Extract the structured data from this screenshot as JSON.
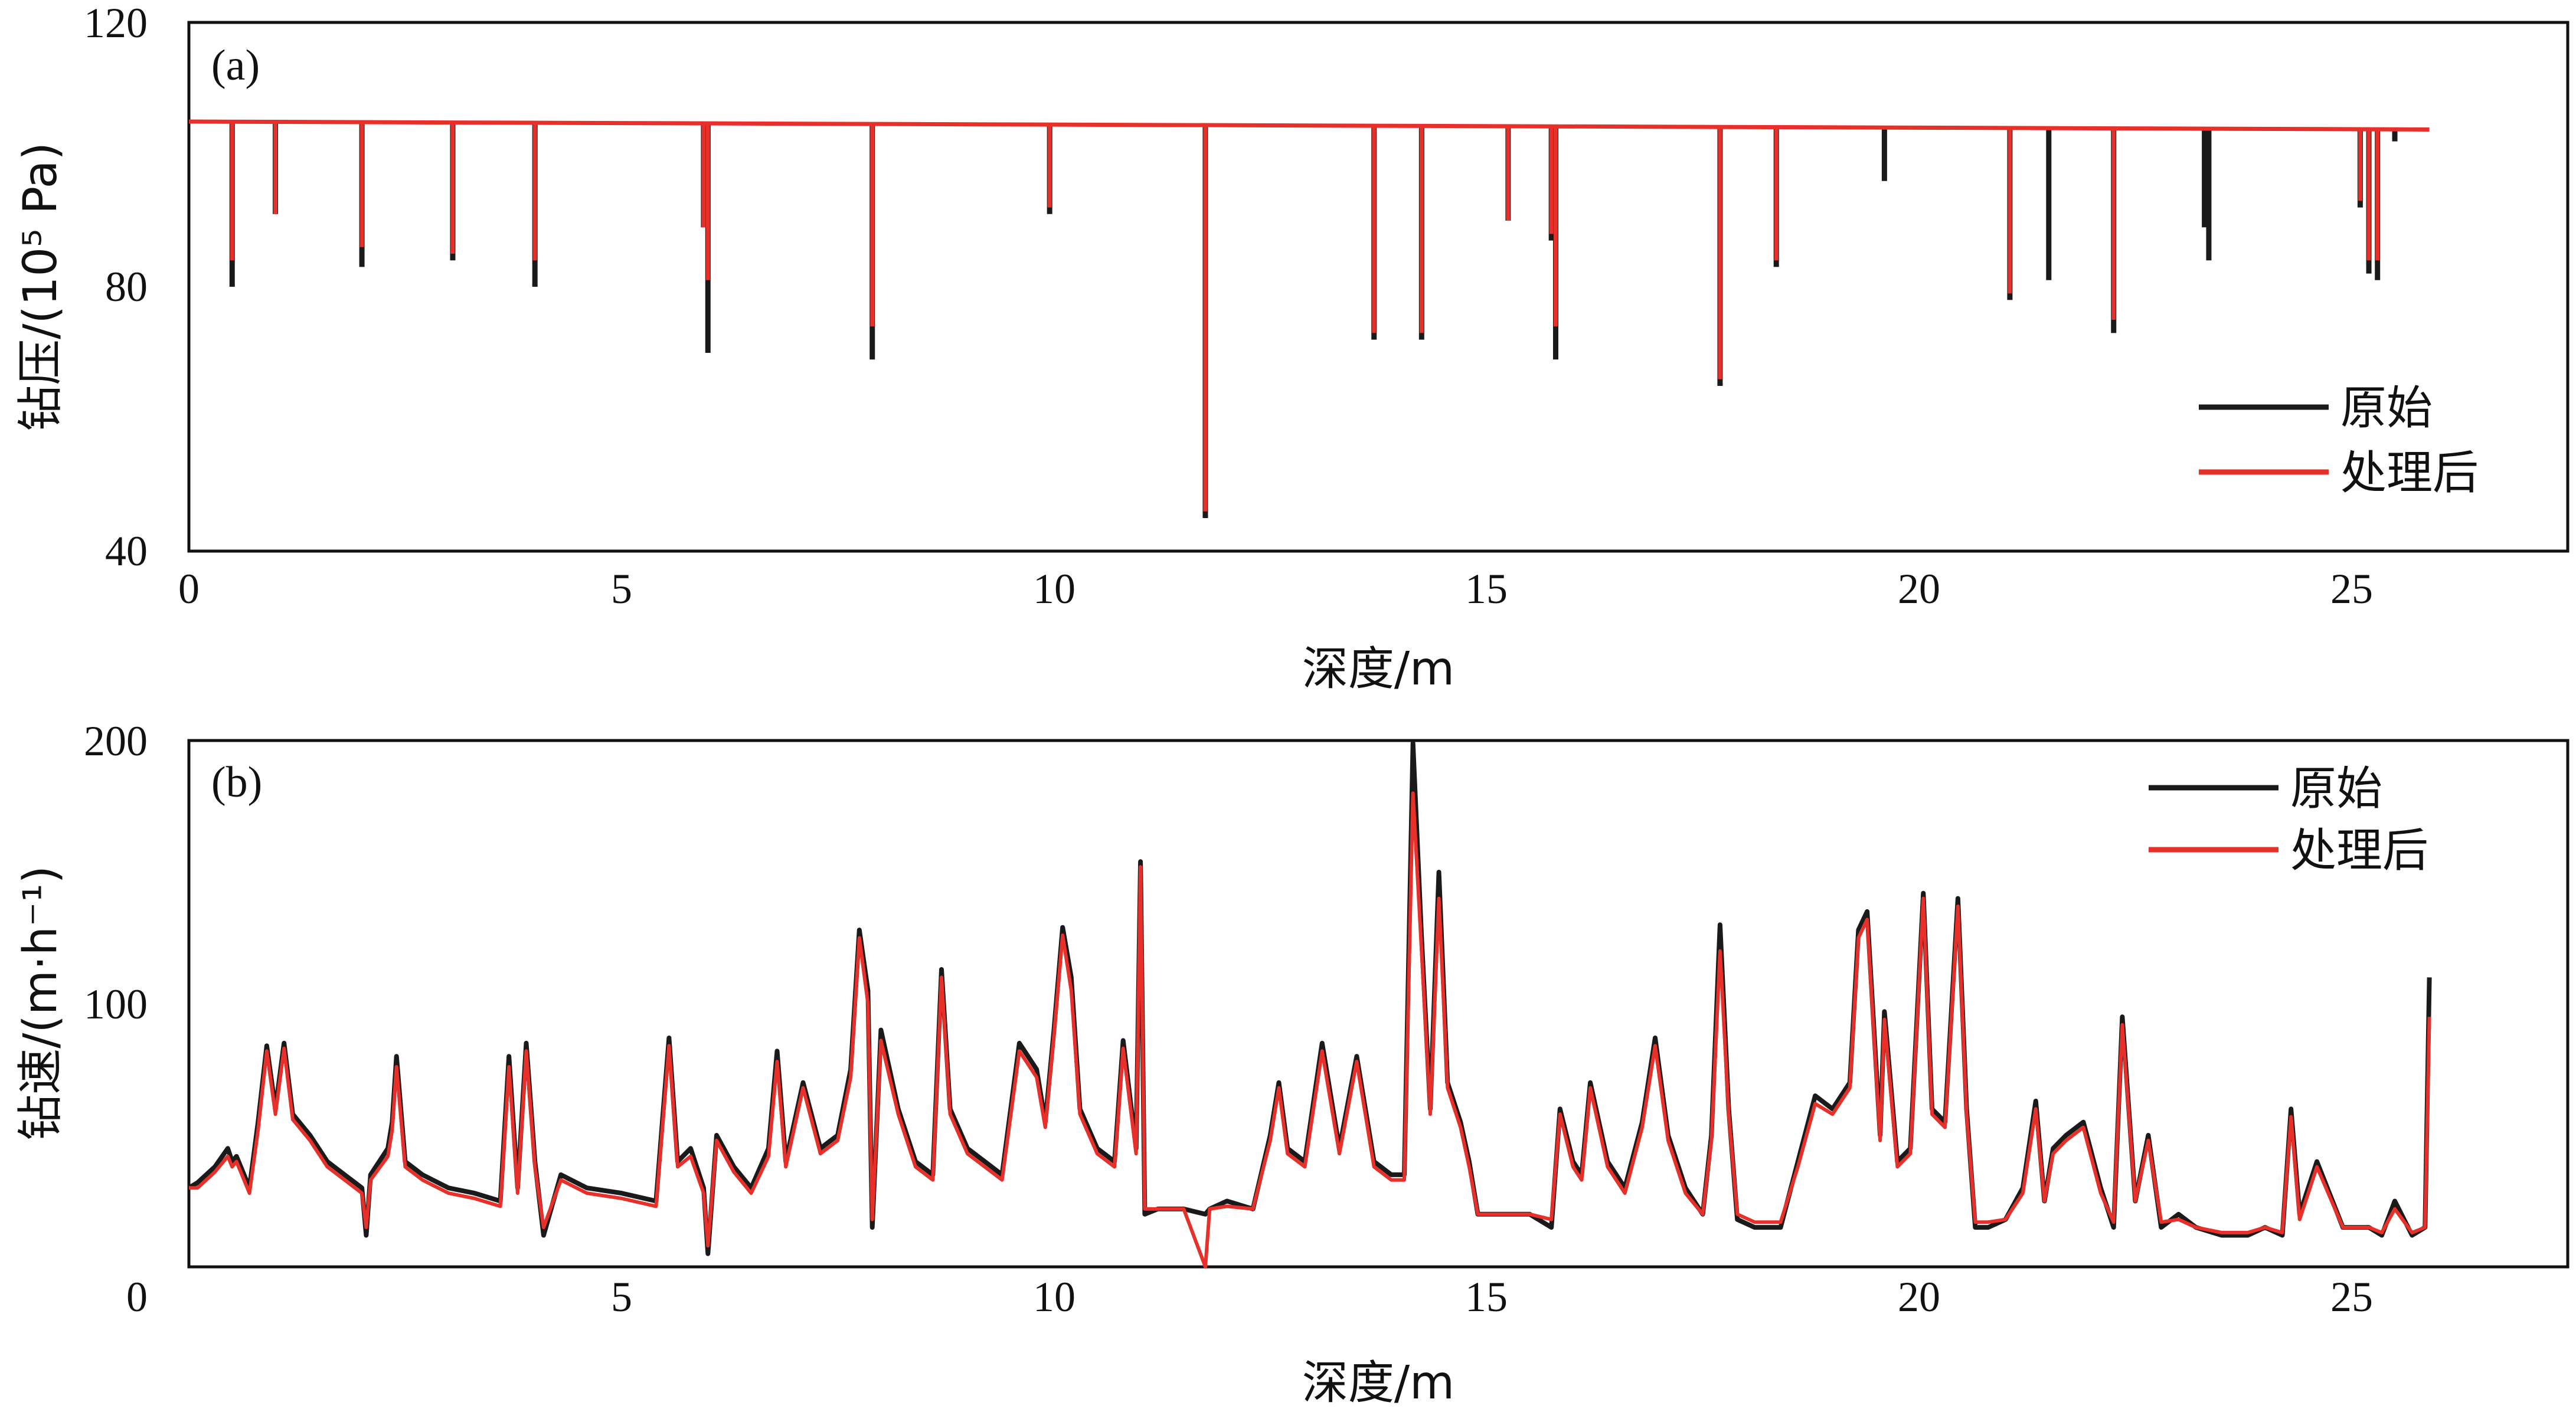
{
  "colors": {
    "original": "#1a1a1a",
    "processed": "#e8302a",
    "frame": "#111111"
  },
  "chart_data": [
    {
      "type": "line",
      "panel_label": "(a)",
      "xlabel": "深度/m",
      "ylabel": "钻压/(10⁵ Pa)",
      "xlim": [
        0,
        27.5
      ],
      "ylim": [
        40,
        120
      ],
      "xticks": [
        "0",
        "5",
        "10",
        "15",
        "20",
        "25"
      ],
      "yticks": [
        "40",
        "80",
        "120"
      ],
      "legend": {
        "position": "right",
        "entries": [
          "原始",
          "处理后"
        ]
      },
      "baseline": {
        "x": [
          0,
          25.9
        ],
        "y": [
          105.0,
          103.8
        ]
      },
      "spikes": [
        {
          "x": 0.5,
          "orig": 80,
          "proc": 84
        },
        {
          "x": 1.0,
          "orig": 91,
          "proc": 91
        },
        {
          "x": 2.0,
          "orig": 83,
          "proc": 86
        },
        {
          "x": 3.05,
          "orig": 84,
          "proc": 85
        },
        {
          "x": 4.0,
          "orig": 80,
          "proc": 84
        },
        {
          "x": 5.95,
          "orig": 89,
          "proc": 89
        },
        {
          "x": 6.0,
          "orig": 70,
          "proc": 81
        },
        {
          "x": 7.9,
          "orig": 69,
          "proc": 74
        },
        {
          "x": 9.95,
          "orig": 91,
          "proc": 92
        },
        {
          "x": 11.75,
          "orig": 45,
          "proc": 46
        },
        {
          "x": 13.7,
          "orig": 72,
          "proc": 73
        },
        {
          "x": 14.25,
          "orig": 72,
          "proc": 73
        },
        {
          "x": 15.25,
          "orig": 90,
          "proc": 90
        },
        {
          "x": 15.75,
          "orig": 87,
          "proc": 88
        },
        {
          "x": 15.8,
          "orig": 69,
          "proc": 74
        },
        {
          "x": 17.7,
          "orig": 65,
          "proc": 66
        },
        {
          "x": 18.35,
          "orig": 83,
          "proc": 84
        },
        {
          "x": 19.6,
          "orig": 96,
          "proc": 104
        },
        {
          "x": 21.05,
          "orig": 78,
          "proc": 79
        },
        {
          "x": 21.5,
          "orig": 81,
          "proc": 104
        },
        {
          "x": 22.25,
          "orig": 73,
          "proc": 75
        },
        {
          "x": 23.3,
          "orig": 89,
          "proc": 104
        },
        {
          "x": 23.35,
          "orig": 84,
          "proc": 104
        },
        {
          "x": 25.1,
          "orig": 92,
          "proc": 93
        },
        {
          "x": 25.2,
          "orig": 82,
          "proc": 84
        },
        {
          "x": 25.3,
          "orig": 81,
          "proc": 84
        },
        {
          "x": 25.5,
          "orig": 102,
          "proc": 104
        }
      ]
    },
    {
      "type": "line",
      "panel_label": "(b)",
      "xlabel": "深度/m",
      "ylabel": "钻速/(m·h⁻¹)",
      "xlim": [
        0,
        27.5
      ],
      "ylim": [
        0,
        200
      ],
      "xticks": [
        "0",
        "5",
        "10",
        "15",
        "20",
        "25"
      ],
      "yticks": [
        "0",
        "100",
        "200"
      ],
      "legend": {
        "position": "top-right",
        "entries": [
          "原始",
          "处理后"
        ]
      },
      "x": [
        0.0,
        0.1,
        0.3,
        0.45,
        0.5,
        0.55,
        0.7,
        0.8,
        0.9,
        1.0,
        1.1,
        1.2,
        1.4,
        1.6,
        1.8,
        2.0,
        2.05,
        2.1,
        2.3,
        2.35,
        2.4,
        2.5,
        2.7,
        3.0,
        3.3,
        3.6,
        3.7,
        3.8,
        3.9,
        4.0,
        4.1,
        4.3,
        4.6,
        5.0,
        5.4,
        5.55,
        5.65,
        5.8,
        5.95,
        6.0,
        6.1,
        6.3,
        6.5,
        6.7,
        6.8,
        6.9,
        7.1,
        7.3,
        7.5,
        7.65,
        7.75,
        7.85,
        7.9,
        8.0,
        8.2,
        8.4,
        8.6,
        8.7,
        8.8,
        9.0,
        9.2,
        9.4,
        9.6,
        9.8,
        9.9,
        10.0,
        10.1,
        10.2,
        10.3,
        10.5,
        10.7,
        10.8,
        10.95,
        11.0,
        11.05,
        11.2,
        11.5,
        11.75,
        11.8,
        12.0,
        12.3,
        12.5,
        12.6,
        12.7,
        12.9,
        13.1,
        13.3,
        13.5,
        13.7,
        13.9,
        14.05,
        14.15,
        14.25,
        14.35,
        14.45,
        14.55,
        14.7,
        14.8,
        14.9,
        15.1,
        15.3,
        15.5,
        15.75,
        15.85,
        16.0,
        16.1,
        16.2,
        16.4,
        16.6,
        16.8,
        16.95,
        17.1,
        17.3,
        17.5,
        17.6,
        17.7,
        17.8,
        17.9,
        18.1,
        18.4,
        18.6,
        18.8,
        19.0,
        19.2,
        19.3,
        19.4,
        19.55,
        19.6,
        19.75,
        19.9,
        20.05,
        20.15,
        20.3,
        20.45,
        20.55,
        20.65,
        20.8,
        21.0,
        21.2,
        21.35,
        21.45,
        21.55,
        21.7,
        21.9,
        22.1,
        22.25,
        22.35,
        22.5,
        22.65,
        22.8,
        23.0,
        23.2,
        23.5,
        23.8,
        24.0,
        24.2,
        24.3,
        24.4,
        24.6,
        24.9,
        25.2,
        25.35,
        25.5,
        25.7,
        25.85,
        25.9
      ],
      "series": [
        {
          "name": "原始",
          "values": [
            30,
            32,
            38,
            45,
            40,
            42,
            30,
            55,
            84,
            60,
            85,
            58,
            50,
            40,
            35,
            30,
            12,
            35,
            45,
            55,
            80,
            40,
            35,
            30,
            28,
            25,
            80,
            30,
            85,
            40,
            12,
            35,
            30,
            28,
            25,
            87,
            40,
            45,
            30,
            5,
            50,
            38,
            30,
            45,
            82,
            40,
            70,
            45,
            50,
            75,
            128,
            105,
            15,
            90,
            60,
            40,
            35,
            113,
            60,
            45,
            40,
            35,
            85,
            75,
            55,
            90,
            129,
            110,
            60,
            45,
            40,
            86,
            45,
            154,
            20,
            22,
            22,
            20,
            22,
            25,
            22,
            50,
            70,
            45,
            40,
            85,
            45,
            80,
            40,
            35,
            35,
            199,
            125,
            60,
            150,
            70,
            55,
            40,
            20,
            20,
            20,
            20,
            15,
            60,
            40,
            35,
            70,
            40,
            30,
            55,
            87,
            50,
            30,
            20,
            50,
            130,
            60,
            18,
            15,
            15,
            40,
            65,
            60,
            70,
            128,
            135,
            50,
            97,
            40,
            45,
            142,
            60,
            55,
            140,
            60,
            15,
            15,
            18,
            30,
            63,
            25,
            45,
            50,
            55,
            30,
            15,
            95,
            25,
            50,
            15,
            20,
            15,
            12,
            12,
            15,
            12,
            60,
            20,
            40,
            15,
            15,
            12,
            25,
            12,
            15,
            110
          ]
        },
        {
          "name": "处理后",
          "values": [
            30,
            30,
            36,
            42,
            38,
            40,
            28,
            52,
            82,
            58,
            83,
            56,
            48,
            38,
            33,
            28,
            15,
            33,
            42,
            52,
            76,
            38,
            33,
            28,
            26,
            23,
            76,
            28,
            82,
            38,
            15,
            33,
            28,
            26,
            23,
            84,
            38,
            42,
            28,
            8,
            48,
            36,
            28,
            42,
            78,
            38,
            68,
            43,
            48,
            72,
            125,
            100,
            18,
            86,
            58,
            38,
            33,
            110,
            58,
            43,
            38,
            33,
            82,
            72,
            53,
            88,
            126,
            105,
            58,
            43,
            38,
            83,
            43,
            152,
            22,
            22,
            22,
            0,
            22,
            23,
            22,
            48,
            68,
            43,
            38,
            82,
            43,
            78,
            38,
            33,
            33,
            180,
            120,
            58,
            140,
            68,
            53,
            38,
            20,
            20,
            20,
            20,
            18,
            58,
            38,
            33,
            68,
            38,
            28,
            53,
            84,
            48,
            28,
            20,
            48,
            120,
            58,
            20,
            17,
            17,
            38,
            62,
            58,
            68,
            125,
            132,
            48,
            94,
            38,
            43,
            140,
            58,
            53,
            137,
            58,
            17,
            17,
            18,
            28,
            60,
            25,
            43,
            48,
            53,
            28,
            17,
            92,
            25,
            48,
            17,
            18,
            15,
            13,
            13,
            15,
            13,
            57,
            18,
            38,
            15,
            15,
            13,
            22,
            13,
            15,
            95
          ]
        }
      ]
    }
  ]
}
